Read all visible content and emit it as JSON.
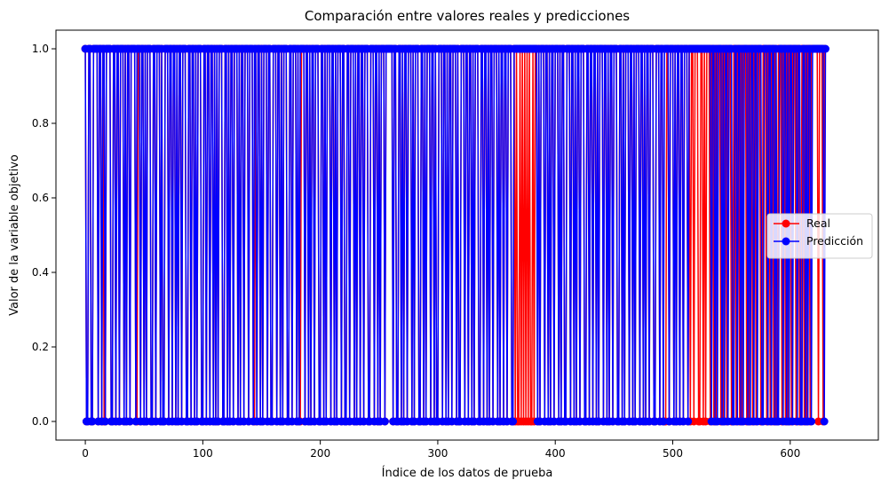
{
  "chart_data": {
    "type": "line",
    "title": "Comparación entre valores reales y predicciones",
    "xlabel": "Índice de los datos de prueba",
    "ylabel": "Valor de la variable objetivo",
    "xlim": [
      -25,
      675
    ],
    "ylim": [
      -0.05,
      1.05
    ],
    "x_ticks": [
      0,
      100,
      200,
      300,
      400,
      500,
      600
    ],
    "y_ticks": [
      0.0,
      0.2,
      0.4,
      0.6,
      0.8,
      1.0
    ],
    "x_tick_labels": [
      "0",
      "100",
      "200",
      "300",
      "400",
      "500",
      "600"
    ],
    "y_tick_labels": [
      "0.0",
      "0.2",
      "0.4",
      "0.6",
      "0.8",
      "1.0"
    ],
    "grid": false,
    "legend_position": "center-right",
    "n_points": 651,
    "series": [
      {
        "name": "Real",
        "color": "#ff0000",
        "marker": "circle",
        "values": [
          1,
          0,
          0,
          1,
          1,
          0,
          0,
          1,
          1,
          1,
          1,
          0,
          1,
          1,
          0,
          1,
          0,
          0,
          1,
          1,
          1,
          1,
          0,
          0,
          1,
          1,
          0,
          1,
          1,
          0,
          1,
          1,
          1,
          0,
          1,
          0,
          1,
          1,
          0,
          1,
          1,
          1,
          1,
          0,
          0,
          1,
          1,
          0,
          1,
          1,
          0,
          1,
          0,
          1,
          1,
          1,
          0,
          0,
          1,
          1,
          0,
          1,
          1,
          1,
          0,
          1,
          0,
          0,
          1,
          1,
          1,
          0,
          1,
          1,
          0,
          1,
          1,
          0,
          1,
          0,
          1,
          1,
          0,
          1,
          1,
          1,
          0,
          0,
          1,
          1,
          0,
          1,
          1,
          0,
          1,
          0,
          1,
          1,
          1,
          0,
          0,
          1,
          1,
          0,
          1,
          1,
          0,
          1,
          1,
          0,
          1,
          0,
          1,
          0,
          1,
          1,
          1,
          0,
          0,
          1,
          1,
          0,
          1,
          0,
          1,
          1,
          0,
          1,
          1,
          1,
          0,
          1,
          0,
          1,
          1,
          0,
          1,
          1,
          1,
          0,
          1,
          1,
          1,
          0,
          0,
          1,
          0,
          1,
          1,
          0,
          1,
          0,
          1,
          1,
          1,
          0,
          1,
          1,
          0,
          0,
          1,
          1,
          1,
          0,
          1,
          1,
          0,
          1,
          0,
          1,
          1,
          1,
          0,
          0,
          1,
          1,
          0,
          1,
          1,
          1,
          0,
          1,
          0,
          0,
          1,
          1,
          1,
          0,
          1,
          1,
          0,
          1,
          0,
          1,
          1,
          0,
          1,
          1,
          1,
          0,
          0,
          1,
          1,
          0,
          1,
          0,
          1,
          1,
          1,
          0,
          1,
          1,
          0,
          1,
          0,
          1,
          1,
          1,
          0,
          1,
          1,
          0,
          0,
          1,
          1,
          0,
          1,
          1,
          1,
          0,
          1,
          0,
          1,
          1,
          0,
          1,
          1,
          0,
          1,
          1,
          1,
          0,
          0,
          1,
          1,
          1,
          0,
          1,
          1,
          0,
          1,
          0,
          1,
          1,
          1,
          0,
          1,
          1,
          1,
          1,
          1,
          1,
          0,
          1,
          1,
          0,
          0,
          1,
          1,
          0,
          1,
          0,
          1,
          1,
          0,
          1,
          1,
          1,
          0,
          1,
          0,
          1,
          1,
          1,
          0,
          0,
          1,
          1,
          0,
          1,
          0,
          1,
          1,
          1,
          0,
          1,
          1,
          0,
          1,
          0,
          0,
          1,
          1,
          1,
          0,
          1,
          1,
          0,
          1,
          0,
          1,
          1,
          0,
          1,
          1,
          1,
          0,
          1,
          0,
          0,
          1,
          1,
          1,
          0,
          1,
          1,
          0,
          1,
          1,
          0,
          1,
          0,
          1,
          1,
          1,
          0,
          0,
          1,
          1,
          0,
          1,
          1,
          0,
          1,
          0,
          1,
          1,
          0,
          1,
          1,
          1,
          0,
          1,
          0,
          1,
          1,
          0,
          1,
          1,
          0,
          1,
          1,
          1,
          0,
          0,
          1,
          0,
          1,
          0,
          0,
          1,
          0,
          1,
          0,
          1,
          0,
          1,
          0,
          1,
          0,
          0,
          1,
          0,
          1,
          1,
          0,
          1,
          0,
          1,
          1,
          1,
          0,
          1,
          1,
          0,
          1,
          0,
          1,
          1,
          0,
          1,
          1,
          1,
          0,
          1,
          0,
          1,
          1,
          0,
          0,
          1,
          1,
          1,
          0,
          1,
          1,
          0,
          1,
          0,
          1,
          1,
          0,
          1,
          1,
          1,
          0,
          0,
          1,
          1,
          0,
          1,
          1,
          0,
          1,
          1,
          0,
          1,
          0,
          1,
          1,
          1,
          0,
          1,
          1,
          0,
          1,
          0,
          1,
          1,
          0,
          1,
          1,
          1,
          0,
          0,
          1,
          1,
          0,
          1,
          0,
          1,
          1,
          1,
          0,
          1,
          1,
          0,
          1,
          0,
          1,
          1,
          1,
          0,
          1,
          1,
          0,
          1,
          0,
          1,
          1,
          0,
          1,
          1,
          1,
          0,
          0,
          1,
          1,
          1,
          0,
          1,
          1,
          0,
          0,
          0,
          1,
          1,
          0,
          1,
          1,
          1,
          0,
          1,
          0,
          1,
          1,
          0,
          1,
          1,
          0,
          1,
          1,
          1,
          0,
          1,
          0,
          1,
          1,
          0,
          1,
          1,
          1,
          0,
          0,
          1,
          1,
          0,
          1,
          0,
          1,
          1,
          1,
          0,
          1,
          1,
          0,
          1,
          0,
          1,
          1,
          1,
          0,
          1,
          0,
          1,
          1,
          0,
          1,
          1,
          1,
          0,
          0,
          1,
          1,
          0,
          1,
          1,
          0,
          1,
          0,
          1,
          1,
          1,
          0,
          1,
          0,
          1,
          1,
          0,
          1,
          1,
          0,
          1,
          1,
          1,
          0,
          0,
          1,
          1,
          1,
          0,
          1,
          1,
          0,
          1,
          1,
          0,
          1,
          0,
          0,
          1,
          1,
          1,
          0,
          1,
          1,
          0,
          1,
          0,
          1,
          1,
          0,
          1,
          1,
          1,
          0,
          1,
          1,
          0,
          0,
          1,
          1,
          0,
          1,
          0,
          1,
          1,
          0,
          1,
          1,
          1,
          1,
          1,
          1,
          0,
          1,
          1,
          1,
          0,
          1
        ]
      },
      {
        "name": "Predicción",
        "color": "#0000ff",
        "marker": "circle",
        "values": [
          1,
          0,
          0,
          1,
          1,
          0,
          0,
          1,
          1,
          1,
          1,
          0,
          1,
          1,
          0,
          1,
          1,
          0,
          1,
          1,
          1,
          1,
          0,
          0,
          1,
          1,
          0,
          1,
          1,
          0,
          1,
          1,
          1,
          0,
          1,
          0,
          1,
          1,
          0,
          1,
          1,
          1,
          1,
          0,
          1,
          1,
          1,
          0,
          1,
          1,
          0,
          1,
          0,
          1,
          1,
          1,
          0,
          0,
          1,
          1,
          0,
          1,
          1,
          1,
          0,
          1,
          0,
          0,
          1,
          1,
          1,
          0,
          1,
          1,
          0,
          1,
          1,
          0,
          1,
          0,
          1,
          1,
          0,
          1,
          1,
          1,
          0,
          0,
          1,
          1,
          0,
          1,
          1,
          0,
          1,
          0,
          1,
          1,
          1,
          0,
          0,
          1,
          1,
          0,
          1,
          1,
          0,
          1,
          1,
          0,
          1,
          0,
          1,
          0,
          1,
          1,
          1,
          0,
          0,
          1,
          1,
          0,
          1,
          0,
          1,
          1,
          0,
          1,
          1,
          1,
          0,
          1,
          0,
          1,
          1,
          0,
          1,
          1,
          1,
          0,
          1,
          1,
          1,
          0,
          1,
          1,
          0,
          1,
          1,
          0,
          1,
          0,
          1,
          1,
          1,
          0,
          1,
          1,
          0,
          0,
          1,
          1,
          1,
          0,
          1,
          1,
          0,
          1,
          0,
          1,
          1,
          1,
          0,
          0,
          1,
          1,
          0,
          1,
          1,
          1,
          0,
          1,
          0,
          1,
          1,
          1,
          1,
          0,
          1,
          1,
          0,
          1,
          0,
          1,
          1,
          0,
          1,
          1,
          1,
          0,
          0,
          1,
          1,
          0,
          1,
          0,
          1,
          1,
          1,
          0,
          1,
          1,
          0,
          1,
          0,
          1,
          1,
          1,
          0,
          1,
          1,
          0,
          0,
          1,
          1,
          0,
          1,
          1,
          1,
          0,
          1,
          0,
          1,
          1,
          0,
          1,
          1,
          0,
          1,
          1,
          1,
          0,
          0,
          1,
          1,
          1,
          0,
          1,
          1,
          0,
          1,
          0,
          1,
          1,
          1,
          0,
          1,
          1,
          1,
          1,
          1,
          1,
          0,
          1,
          1,
          0,
          0,
          1,
          1,
          0,
          1,
          0,
          1,
          1,
          0,
          1,
          1,
          1,
          0,
          1,
          0,
          1,
          1,
          1,
          0,
          0,
          1,
          1,
          0,
          1,
          0,
          1,
          1,
          1,
          0,
          1,
          1,
          0,
          1,
          0,
          0,
          1,
          1,
          1,
          0,
          1,
          1,
          0,
          1,
          0,
          1,
          1,
          0,
          1,
          1,
          1,
          0,
          1,
          0,
          0,
          1,
          1,
          1,
          0,
          1,
          1,
          0,
          1,
          1,
          0,
          1,
          0,
          1,
          1,
          1,
          0,
          0,
          1,
          1,
          0,
          1,
          1,
          0,
          1,
          0,
          1,
          1,
          0,
          1,
          1,
          1,
          0,
          1,
          0,
          1,
          1,
          0,
          1,
          1,
          0,
          1,
          1,
          1,
          0,
          0,
          1,
          1,
          1,
          1,
          1,
          1,
          1,
          1,
          1,
          1,
          1,
          1,
          1,
          1,
          1,
          1,
          1,
          1,
          1,
          1,
          0,
          1,
          0,
          1,
          1,
          1,
          0,
          1,
          1,
          0,
          1,
          0,
          1,
          1,
          0,
          1,
          1,
          1,
          0,
          1,
          0,
          1,
          1,
          0,
          0,
          1,
          1,
          1,
          0,
          1,
          1,
          0,
          1,
          0,
          1,
          1,
          0,
          1,
          1,
          1,
          0,
          0,
          1,
          1,
          0,
          1,
          1,
          0,
          1,
          1,
          0,
          1,
          0,
          1,
          1,
          1,
          0,
          1,
          1,
          0,
          1,
          0,
          1,
          1,
          0,
          1,
          1,
          1,
          0,
          0,
          1,
          1,
          0,
          1,
          0,
          1,
          1,
          1,
          0,
          1,
          1,
          0,
          1,
          0,
          1,
          1,
          1,
          0,
          1,
          1,
          0,
          1,
          0,
          1,
          1,
          0,
          1,
          1,
          1,
          0,
          0,
          1,
          1,
          1,
          0,
          1,
          1,
          0,
          1,
          1,
          1,
          1,
          0,
          1,
          1,
          1,
          0,
          1,
          0,
          1,
          1,
          0,
          1,
          1,
          0,
          1,
          1,
          1,
          0,
          1,
          1,
          1,
          1,
          1,
          1,
          1,
          1,
          1,
          1,
          1,
          1,
          1,
          1,
          1,
          1,
          1,
          1,
          1,
          0,
          1,
          1,
          0,
          1,
          0,
          1,
          1,
          1,
          0,
          1,
          0,
          1,
          1,
          0,
          1,
          1,
          1,
          0,
          0,
          1,
          1,
          0,
          1,
          1,
          0,
          1,
          0,
          1,
          1,
          1,
          0,
          1,
          0,
          1,
          1,
          0,
          1,
          1,
          0,
          1,
          1,
          1,
          0,
          0,
          1,
          1,
          1,
          0,
          1,
          1,
          0,
          1,
          1,
          0,
          1,
          0,
          0,
          1,
          1,
          1,
          0,
          1,
          1,
          0,
          1,
          0,
          1,
          1,
          0,
          1,
          1,
          1,
          0,
          1,
          1,
          0,
          0,
          1,
          1,
          0,
          1,
          0,
          1,
          1,
          0,
          1,
          1,
          1,
          1,
          1,
          1,
          1,
          1,
          1,
          1,
          0,
          1
        ]
      }
    ]
  }
}
